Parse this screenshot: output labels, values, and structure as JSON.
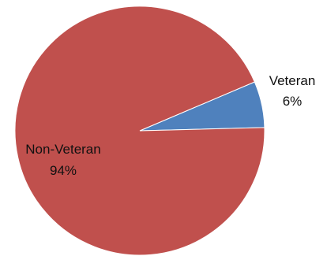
{
  "chart_data": {
    "type": "pie",
    "title": "",
    "slices": [
      {
        "label": "Veteran",
        "value": 6,
        "value_label": "6%",
        "color": "#4f81bd"
      },
      {
        "label": "Non-Veteran",
        "value": 94,
        "value_label": "94%",
        "color": "#c0504d"
      }
    ],
    "legend": "none",
    "data_labels": "category-and-percent"
  }
}
